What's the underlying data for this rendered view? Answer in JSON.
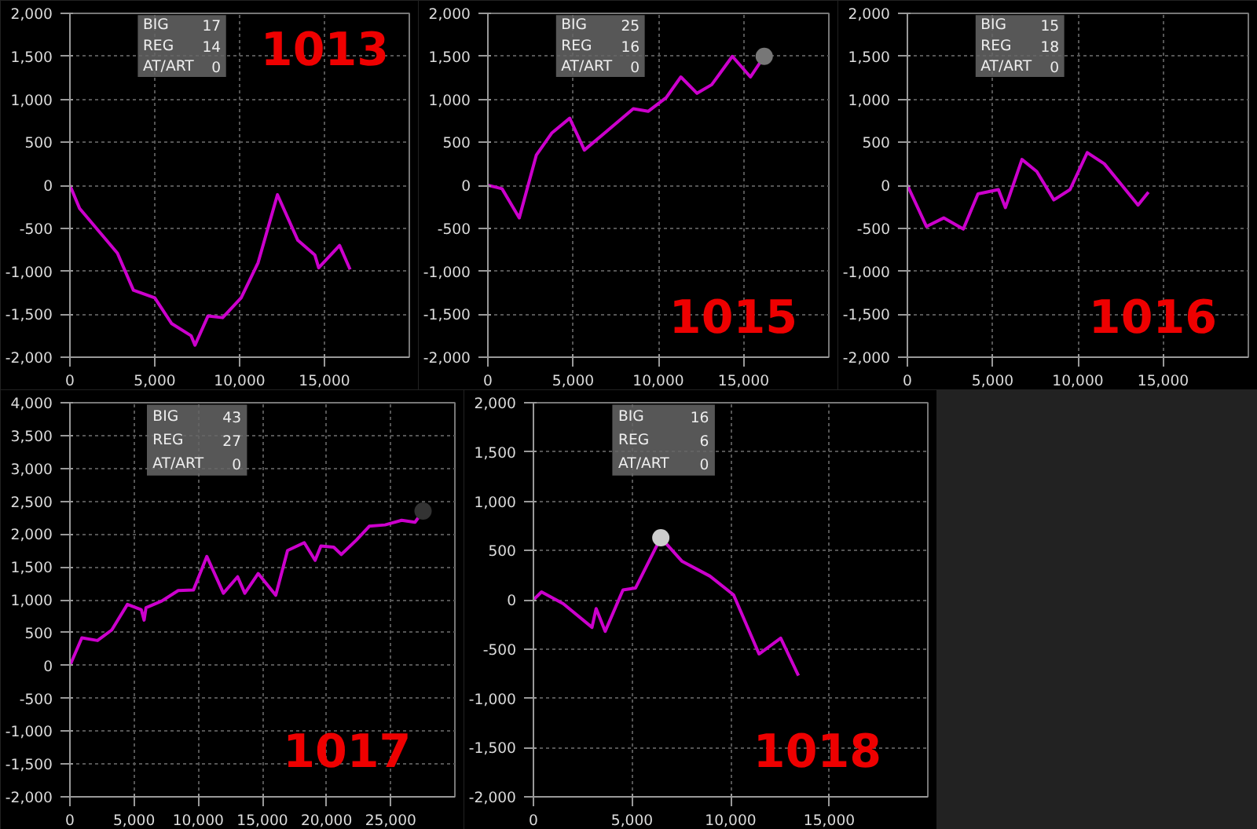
{
  "chart_data": [
    {
      "type": "line",
      "title": "1013",
      "annotations": [
        "BIG",
        "17",
        "REG",
        "14",
        "AT/ART",
        "0"
      ],
      "grid": true,
      "xlim": [
        0,
        20000
      ],
      "xticks": [
        0,
        {
          "value": 5000,
          "label": "5,000"
        },
        {
          "value": 10000,
          "label": "10,000"
        },
        {
          "value": 15000,
          "label": "15,000"
        }
      ],
      "ylim": [
        -2000,
        2000
      ],
      "yticks": [
        {
          "value": -2000,
          "label": "-2,000"
        },
        {
          "value": -1500,
          "label": "-1,500"
        },
        {
          "value": -1000,
          "label": "-1,000"
        },
        -500,
        0,
        500,
        {
          "value": 1000,
          "label": "1,000"
        },
        {
          "value": 1500,
          "label": "1,500"
        },
        {
          "value": 2000,
          "label": "2,000"
        }
      ],
      "series": [
        {
          "color": "#cc00cc",
          "x": [
            0,
            570,
            2800,
            3740,
            5000,
            6000,
            7140,
            7370,
            8140,
            9000,
            10090,
            11090,
            12230,
            13430,
            14430,
            14660,
            15890,
            16510
          ],
          "values": [
            0,
            -270,
            -790,
            -1220,
            -1310,
            -1610,
            -1750,
            -1860,
            -1520,
            -1540,
            -1310,
            -900,
            -110,
            -640,
            -810,
            -960,
            -700,
            -980
          ]
        }
      ]
    },
    {
      "type": "line",
      "title": "1015",
      "annotations": [
        "BIG",
        "25",
        "REG",
        "16",
        "AT/ART",
        "0"
      ],
      "grid": true,
      "xlim": [
        0,
        20000
      ],
      "xticks": [
        0,
        {
          "value": 5000,
          "label": "5,000"
        },
        {
          "value": 10000,
          "label": "10,000"
        },
        {
          "value": 15000,
          "label": "15,000"
        }
      ],
      "ylim": [
        -2000,
        2000
      ],
      "yticks": [
        {
          "value": -2000,
          "label": "-2,000"
        },
        {
          "value": -1500,
          "label": "-1,500"
        },
        {
          "value": -1000,
          "label": "-1,000"
        },
        -500,
        0,
        500,
        {
          "value": 1000,
          "label": "1,000"
        },
        {
          "value": 1500,
          "label": "1,500"
        },
        {
          "value": 2000,
          "label": "2,000"
        }
      ],
      "series": [
        {
          "color": "#cc00cc",
          "x": [
            0,
            830,
            1840,
            2840,
            3760,
            4800,
            5660,
            8530,
            9400,
            10460,
            11320,
            12270,
            13130,
            14340,
            15400,
            16210
          ],
          "values": [
            0,
            -40,
            -380,
            350,
            610,
            780,
            410,
            890,
            860,
            1020,
            1260,
            1070,
            1170,
            1500,
            1260,
            1500
          ]
        },
        {
          "type": "scatter",
          "marker": "circle",
          "color": "#777777",
          "x": [
            16210
          ],
          "values": [
            1500
          ]
        }
      ]
    },
    {
      "type": "line",
      "title": "1016",
      "annotations": [
        "BIG",
        "15",
        "REG",
        "18",
        "AT/ART",
        "0"
      ],
      "grid": true,
      "xlim": [
        0,
        20000
      ],
      "xticks": [
        0,
        {
          "value": 5000,
          "label": "5,000"
        },
        {
          "value": 10000,
          "label": "10,000"
        },
        {
          "value": 15000,
          "label": "15,000"
        }
      ],
      "ylim": [
        -2000,
        2000
      ],
      "yticks": [
        {
          "value": -2000,
          "label": "-2,000"
        },
        {
          "value": -1500,
          "label": "-1,500"
        },
        {
          "value": -1000,
          "label": "-1,000"
        },
        -500,
        0,
        500,
        {
          "value": 1000,
          "label": "1,000"
        },
        {
          "value": 1500,
          "label": "1,500"
        },
        {
          "value": 2000,
          "label": "2,000"
        }
      ],
      "series": [
        {
          "color": "#cc00cc",
          "x": [
            0,
            1120,
            2130,
            3280,
            4140,
            5340,
            5750,
            6720,
            7590,
            8590,
            9540,
            10550,
            11550,
            12620,
            13530,
            14140
          ],
          "values": [
            0,
            -480,
            -380,
            -510,
            -100,
            -50,
            -260,
            300,
            160,
            -170,
            -50,
            380,
            250,
            -10,
            -230,
            -80
          ]
        }
      ]
    },
    {
      "type": "line",
      "title": "1017",
      "annotations": [
        "BIG",
        "43",
        "REG",
        "27",
        "AT/ART",
        "0"
      ],
      "grid": true,
      "xlim": [
        0,
        30000
      ],
      "xticks": [
        0,
        {
          "value": 5000,
          "label": "5,000"
        },
        {
          "value": 10000,
          "label": "10,000"
        },
        {
          "value": 15000,
          "label": "15,000"
        },
        {
          "value": 20000,
          "label": "20,000"
        },
        {
          "value": 25000,
          "label": "25,000"
        }
      ],
      "ylim": [
        -2000,
        4000
      ],
      "yticks": [
        {
          "value": -2000,
          "label": "-2,000"
        },
        {
          "value": -1500,
          "label": "-1,500"
        },
        {
          "value": -1000,
          "label": "-1,000"
        },
        -500,
        0,
        500,
        {
          "value": 1000,
          "label": "1,000"
        },
        {
          "value": 1500,
          "label": "1,500"
        },
        {
          "value": 2000,
          "label": "2,000"
        },
        {
          "value": 2500,
          "label": "2,500"
        },
        {
          "value": 3000,
          "label": "3,000"
        },
        {
          "value": 3500,
          "label": "3,500"
        },
        {
          "value": 4000,
          "label": "4,000"
        }
      ],
      "series": [
        {
          "color": "#cc00cc",
          "x": [
            0,
            930,
            2150,
            3260,
            4480,
            5560,
            5780,
            5930,
            7150,
            8440,
            9630,
            10670,
            11960,
            13070,
            13630,
            14670,
            16040,
            16960,
            18260,
            19110,
            19560,
            20560,
            21150,
            22330,
            23330,
            24560,
            25850,
            26890,
            27520
          ],
          "values": [
            0,
            420,
            380,
            540,
            930,
            850,
            690,
            880,
            980,
            1140,
            1150,
            1660,
            1100,
            1350,
            1100,
            1400,
            1070,
            1750,
            1870,
            1600,
            1820,
            1800,
            1690,
            1910,
            2120,
            2140,
            2210,
            2180,
            2350
          ]
        },
        {
          "type": "scatter",
          "marker": "circle",
          "color": "#333333",
          "x": [
            27520
          ],
          "values": [
            2350
          ]
        }
      ]
    },
    {
      "type": "line",
      "title": "1018",
      "annotations": [
        "BIG",
        "16",
        "REG",
        "6",
        "AT/ART",
        "0"
      ],
      "grid": true,
      "xlim": [
        0,
        20000
      ],
      "xticks": [
        0,
        {
          "value": 5000,
          "label": "5,000"
        },
        {
          "value": 10000,
          "label": "10,000"
        },
        {
          "value": 15000,
          "label": "15,000"
        }
      ],
      "ylim": [
        -2000,
        2000
      ],
      "yticks": [
        {
          "value": -2000,
          "label": "-2,000"
        },
        {
          "value": -1500,
          "label": "-1,500"
        },
        {
          "value": -1000,
          "label": "-1,000"
        },
        -500,
        0,
        500,
        {
          "value": 1000,
          "label": "1,000"
        },
        {
          "value": 1500,
          "label": "1,500"
        },
        {
          "value": 2000,
          "label": "2,000"
        }
      ],
      "series": [
        {
          "color": "#cc00cc",
          "x": [
            0,
            410,
            1510,
            2970,
            3180,
            3640,
            4540,
            5180,
            6460,
            7540,
            8950,
            10150,
            11440,
            12540,
            13440
          ],
          "values": [
            0,
            80,
            -40,
            -280,
            -90,
            -320,
            100,
            120,
            630,
            390,
            240,
            50,
            -550,
            -390,
            -770
          ]
        },
        {
          "type": "scatter",
          "marker": "circle",
          "color": "#cccccc",
          "x": [
            6460
          ],
          "values": [
            630
          ]
        }
      ]
    }
  ]
}
